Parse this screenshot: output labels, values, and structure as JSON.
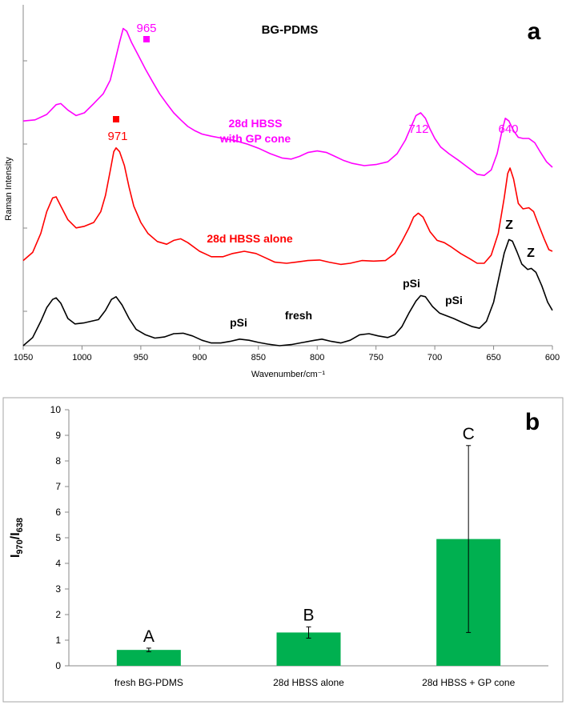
{
  "chart_data": [
    {
      "panel": "a",
      "type": "line",
      "title": "BG-PDMS",
      "xlabel": "Wavenumber/cm⁻¹",
      "ylabel": "Raman Intensity",
      "xlim": [
        1050,
        600
      ],
      "x_reversed": true,
      "xticks": [
        "1050",
        "1000",
        "950",
        "900",
        "850",
        "800",
        "750",
        "700",
        "650",
        "600"
      ],
      "series": [
        {
          "color": "#ff00ff",
          "offset": 2,
          "points": [
            [
              1050,
              1.1
            ],
            [
              1040,
              1.12
            ],
            [
              1030,
              1.22
            ],
            [
              1022,
              1.4
            ],
            [
              1018,
              1.42
            ],
            [
              1012,
              1.3
            ],
            [
              1005,
              1.2
            ],
            [
              998,
              1.25
            ],
            [
              990,
              1.42
            ],
            [
              982,
              1.6
            ],
            [
              976,
              1.85
            ],
            [
              972,
              2.2
            ],
            [
              968,
              2.55
            ],
            [
              965,
              2.8
            ],
            [
              962,
              2.75
            ],
            [
              958,
              2.55
            ],
            [
              952,
              2.3
            ],
            [
              946,
              2.05
            ],
            [
              940,
              1.82
            ],
            [
              934,
              1.6
            ],
            [
              928,
              1.42
            ],
            [
              922,
              1.25
            ],
            [
              916,
              1.12
            ],
            [
              910,
              1.0
            ],
            [
              904,
              0.92
            ],
            [
              898,
              0.86
            ],
            [
              890,
              0.82
            ],
            [
              880,
              0.78
            ],
            [
              870,
              0.74
            ],
            [
              860,
              0.68
            ],
            [
              850,
              0.6
            ],
            [
              840,
              0.5
            ],
            [
              830,
              0.42
            ],
            [
              822,
              0.4
            ],
            [
              815,
              0.45
            ],
            [
              808,
              0.52
            ],
            [
              800,
              0.55
            ],
            [
              792,
              0.52
            ],
            [
              785,
              0.45
            ],
            [
              778,
              0.38
            ],
            [
              770,
              0.32
            ],
            [
              760,
              0.28
            ],
            [
              750,
              0.3
            ],
            [
              740,
              0.35
            ],
            [
              732,
              0.5
            ],
            [
              725,
              0.75
            ],
            [
              720,
              1.0
            ],
            [
              716,
              1.2
            ],
            [
              712,
              1.25
            ],
            [
              708,
              1.15
            ],
            [
              704,
              0.95
            ],
            [
              700,
              0.78
            ],
            [
              695,
              0.62
            ],
            [
              688,
              0.5
            ],
            [
              680,
              0.38
            ],
            [
              672,
              0.25
            ],
            [
              664,
              0.12
            ],
            [
              658,
              0.1
            ],
            [
              652,
              0.2
            ],
            [
              647,
              0.5
            ],
            [
              643,
              0.9
            ],
            [
              640,
              1.15
            ],
            [
              637,
              1.1
            ],
            [
              633,
              0.92
            ],
            [
              629,
              0.8
            ],
            [
              625,
              0.78
            ],
            [
              620,
              0.78
            ],
            [
              615,
              0.7
            ],
            [
              610,
              0.52
            ],
            [
              605,
              0.35
            ],
            [
              600,
              0.25
            ]
          ]
        },
        {
          "color": "#ff0000",
          "offset": 1,
          "points": [
            [
              1050,
              0.05
            ],
            [
              1042,
              0.2
            ],
            [
              1035,
              0.55
            ],
            [
              1030,
              0.95
            ],
            [
              1025,
              1.2
            ],
            [
              1022,
              1.22
            ],
            [
              1018,
              1.05
            ],
            [
              1012,
              0.8
            ],
            [
              1005,
              0.65
            ],
            [
              998,
              0.68
            ],
            [
              990,
              0.75
            ],
            [
              984,
              0.95
            ],
            [
              980,
              1.25
            ],
            [
              976,
              1.7
            ],
            [
              973,
              2.05
            ],
            [
              971,
              2.12
            ],
            [
              968,
              2.05
            ],
            [
              964,
              1.8
            ],
            [
              960,
              1.4
            ],
            [
              956,
              1.05
            ],
            [
              950,
              0.75
            ],
            [
              944,
              0.55
            ],
            [
              936,
              0.4
            ],
            [
              928,
              0.35
            ],
            [
              922,
              0.42
            ],
            [
              916,
              0.45
            ],
            [
              910,
              0.38
            ],
            [
              900,
              0.22
            ],
            [
              890,
              0.12
            ],
            [
              880,
              0.12
            ],
            [
              872,
              0.18
            ],
            [
              862,
              0.22
            ],
            [
              852,
              0.18
            ],
            [
              844,
              0.1
            ],
            [
              836,
              0.02
            ],
            [
              826,
              0.0
            ],
            [
              818,
              0.02
            ],
            [
              808,
              0.05
            ],
            [
              798,
              0.06
            ],
            [
              790,
              0.02
            ],
            [
              780,
              -0.02
            ],
            [
              772,
              0.0
            ],
            [
              762,
              0.05
            ],
            [
              752,
              0.04
            ],
            [
              742,
              0.05
            ],
            [
              734,
              0.18
            ],
            [
              728,
              0.4
            ],
            [
              722,
              0.65
            ],
            [
              718,
              0.85
            ],
            [
              714,
              0.92
            ],
            [
              710,
              0.85
            ],
            [
              704,
              0.58
            ],
            [
              698,
              0.42
            ],
            [
              692,
              0.38
            ],
            [
              686,
              0.3
            ],
            [
              678,
              0.18
            ],
            [
              670,
              0.08
            ],
            [
              664,
              0.0
            ],
            [
              658,
              0.0
            ],
            [
              652,
              0.15
            ],
            [
              646,
              0.55
            ],
            [
              641,
              1.2
            ],
            [
              638,
              1.65
            ],
            [
              636,
              1.75
            ],
            [
              633,
              1.55
            ],
            [
              629,
              1.1
            ],
            [
              625,
              1.0
            ],
            [
              620,
              1.02
            ],
            [
              616,
              0.95
            ],
            [
              612,
              0.72
            ],
            [
              607,
              0.45
            ],
            [
              603,
              0.25
            ],
            [
              600,
              0.22
            ]
          ]
        },
        {
          "color": "#000000",
          "offset": 0,
          "points": [
            [
              1050,
              0.0
            ],
            [
              1042,
              0.15
            ],
            [
              1035,
              0.45
            ],
            [
              1030,
              0.7
            ],
            [
              1025,
              0.85
            ],
            [
              1022,
              0.88
            ],
            [
              1018,
              0.78
            ],
            [
              1012,
              0.5
            ],
            [
              1006,
              0.4
            ],
            [
              998,
              0.42
            ],
            [
              992,
              0.45
            ],
            [
              986,
              0.48
            ],
            [
              980,
              0.65
            ],
            [
              975,
              0.85
            ],
            [
              971,
              0.9
            ],
            [
              966,
              0.75
            ],
            [
              960,
              0.5
            ],
            [
              954,
              0.3
            ],
            [
              946,
              0.2
            ],
            [
              938,
              0.14
            ],
            [
              930,
              0.16
            ],
            [
              922,
              0.22
            ],
            [
              914,
              0.23
            ],
            [
              906,
              0.18
            ],
            [
              898,
              0.1
            ],
            [
              890,
              0.05
            ],
            [
              882,
              0.05
            ],
            [
              874,
              0.08
            ],
            [
              866,
              0.12
            ],
            [
              858,
              0.1
            ],
            [
              850,
              0.06
            ],
            [
              842,
              0.03
            ],
            [
              832,
              0.0
            ],
            [
              822,
              0.02
            ],
            [
              812,
              0.06
            ],
            [
              802,
              0.1
            ],
            [
              796,
              0.12
            ],
            [
              788,
              0.08
            ],
            [
              780,
              0.05
            ],
            [
              772,
              0.1
            ],
            [
              764,
              0.2
            ],
            [
              756,
              0.22
            ],
            [
              748,
              0.18
            ],
            [
              740,
              0.15
            ],
            [
              734,
              0.2
            ],
            [
              728,
              0.35
            ],
            [
              722,
              0.6
            ],
            [
              716,
              0.82
            ],
            [
              712,
              0.92
            ],
            [
              708,
              0.9
            ],
            [
              702,
              0.72
            ],
            [
              696,
              0.6
            ],
            [
              690,
              0.55
            ],
            [
              684,
              0.5
            ],
            [
              676,
              0.42
            ],
            [
              668,
              0.35
            ],
            [
              662,
              0.32
            ],
            [
              656,
              0.45
            ],
            [
              650,
              0.8
            ],
            [
              645,
              1.3
            ],
            [
              641,
              1.7
            ],
            [
              637,
              1.95
            ],
            [
              634,
              1.92
            ],
            [
              630,
              1.72
            ],
            [
              626,
              1.5
            ],
            [
              621,
              1.4
            ],
            [
              618,
              1.42
            ],
            [
              614,
              1.35
            ],
            [
              609,
              1.1
            ],
            [
              604,
              0.8
            ],
            [
              600,
              0.65
            ]
          ]
        }
      ],
      "annotations": {
        "series_labels": [
          {
            "text": "28d HBSS",
            "color": "#ff00ff"
          },
          {
            "text": "with GP cone",
            "color": "#ff00ff"
          },
          {
            "text": "28d HBSS alone",
            "color": "#ff0000"
          },
          {
            "text": "fresh",
            "color": "#000000"
          }
        ],
        "peaks": [
          {
            "text": "965",
            "color": "#ff00ff"
          },
          {
            "text": "971",
            "color": "#ff0000"
          },
          {
            "text": "712",
            "color": "#ff00ff"
          },
          {
            "text": "640",
            "color": "#ff00ff"
          }
        ],
        "band_labels": [
          "pSi",
          "pSi",
          "pSi",
          "Z",
          "Z"
        ],
        "panel_letter": "a"
      }
    },
    {
      "panel": "b",
      "type": "bar",
      "categories": [
        "fresh BG-PDMS",
        "28d HBSS alone",
        "28d HBSS + GP cone"
      ],
      "values": [
        0.62,
        1.3,
        4.95
      ],
      "errors": [
        0.07,
        0.22,
        3.65
      ],
      "significance": [
        "A",
        "B",
        "C"
      ],
      "ylabel_main": "I",
      "ylabel_sub1": "970",
      "ylabel_sep": "/I",
      "ylabel_sub2": "638",
      "ylim": [
        0,
        10
      ],
      "yticks": [
        "0",
        "1",
        "2",
        "3",
        "4",
        "5",
        "6",
        "7",
        "8",
        "9",
        "10"
      ],
      "bar_color": "#00b050",
      "grid": false,
      "panel_letter": "b"
    }
  ]
}
